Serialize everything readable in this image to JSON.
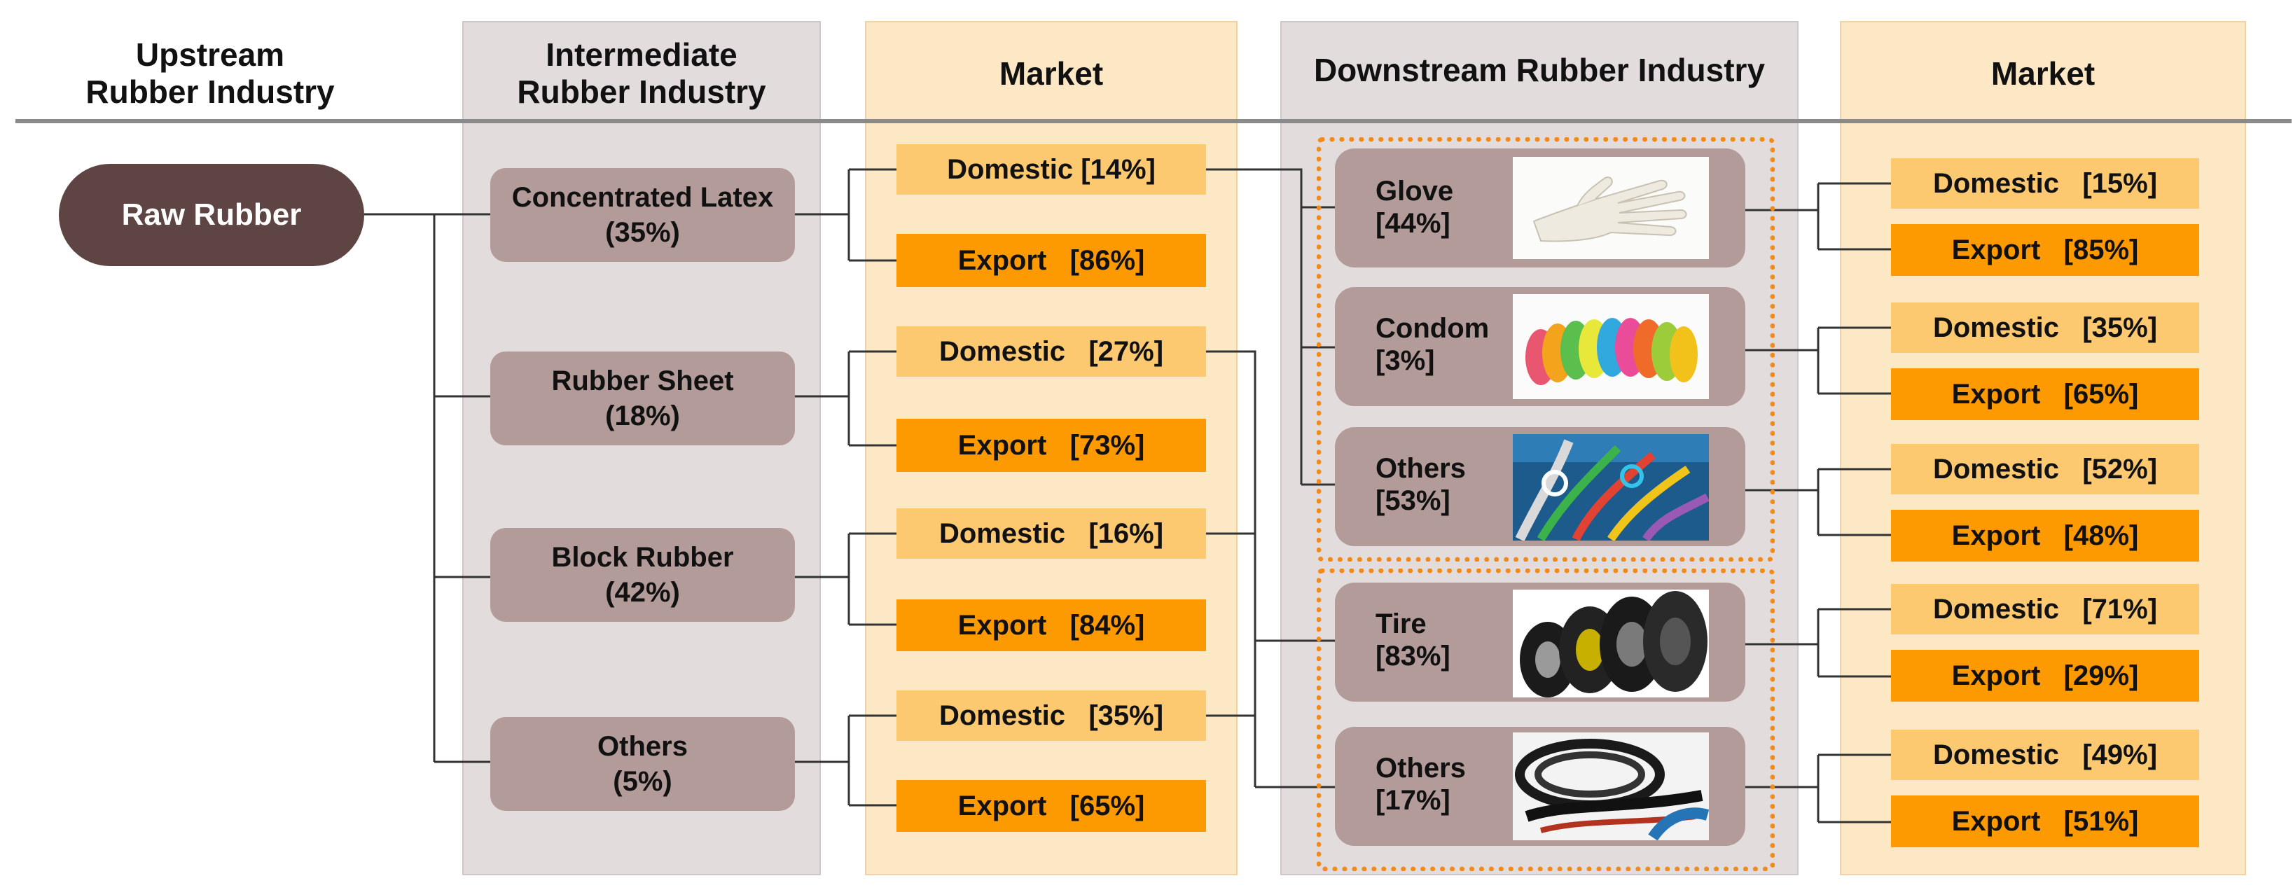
{
  "headers": {
    "upstream": "Upstream\nRubber Industry",
    "intermediate": "Intermediate\nRubber Industry",
    "market_1": "Market",
    "downstream": "Downstream Rubber Industry",
    "market_2": "Market"
  },
  "raw_rubber": "Raw Rubber",
  "intermediate": [
    {
      "label": "Concentrated Latex\n(35%)",
      "domestic": "Domestic [14%]",
      "export": "Export   [86%]"
    },
    {
      "label": "Rubber Sheet\n(18%)",
      "domestic": "Domestic   [27%]",
      "export": "Export   [73%]"
    },
    {
      "label": "Block Rubber\n(42%)",
      "domestic": "Domestic   [16%]",
      "export": "Export   [84%]"
    },
    {
      "label": "Others\n(5%)",
      "domestic": "Domestic   [35%]",
      "export": "Export   [65%]"
    }
  ],
  "downstream": [
    {
      "label": "Glove\n[44%]",
      "image": "glove-photo",
      "domestic": "Domestic   [15%]",
      "export": "Export   [85%]"
    },
    {
      "label": "Condom\n[3%]",
      "image": "condom-photo",
      "domestic": "Domestic   [35%]",
      "export": "Export   [65%]"
    },
    {
      "label": "Others\n[53%]",
      "image": "hoses-photo",
      "domestic": "Domestic   [52%]",
      "export": "Export   [48%]"
    },
    {
      "label": "Tire\n[83%]",
      "image": "tires-photo",
      "domestic": "Domestic   [71%]",
      "export": "Export   [29%]"
    },
    {
      "label": "Others\n[17%]",
      "image": "rubber-profiles-photo",
      "domestic": "Domestic   [49%]",
      "export": "Export   [51%]"
    }
  ],
  "colors": {
    "raw_rubber": "#5e4442",
    "box_brown": "#b29b99",
    "domestic": "#fdc970",
    "export": "#fe9a01",
    "panel_gray": "#e3dcdc",
    "panel_cream": "#fde8c6",
    "group_border": "#f28a1a"
  }
}
